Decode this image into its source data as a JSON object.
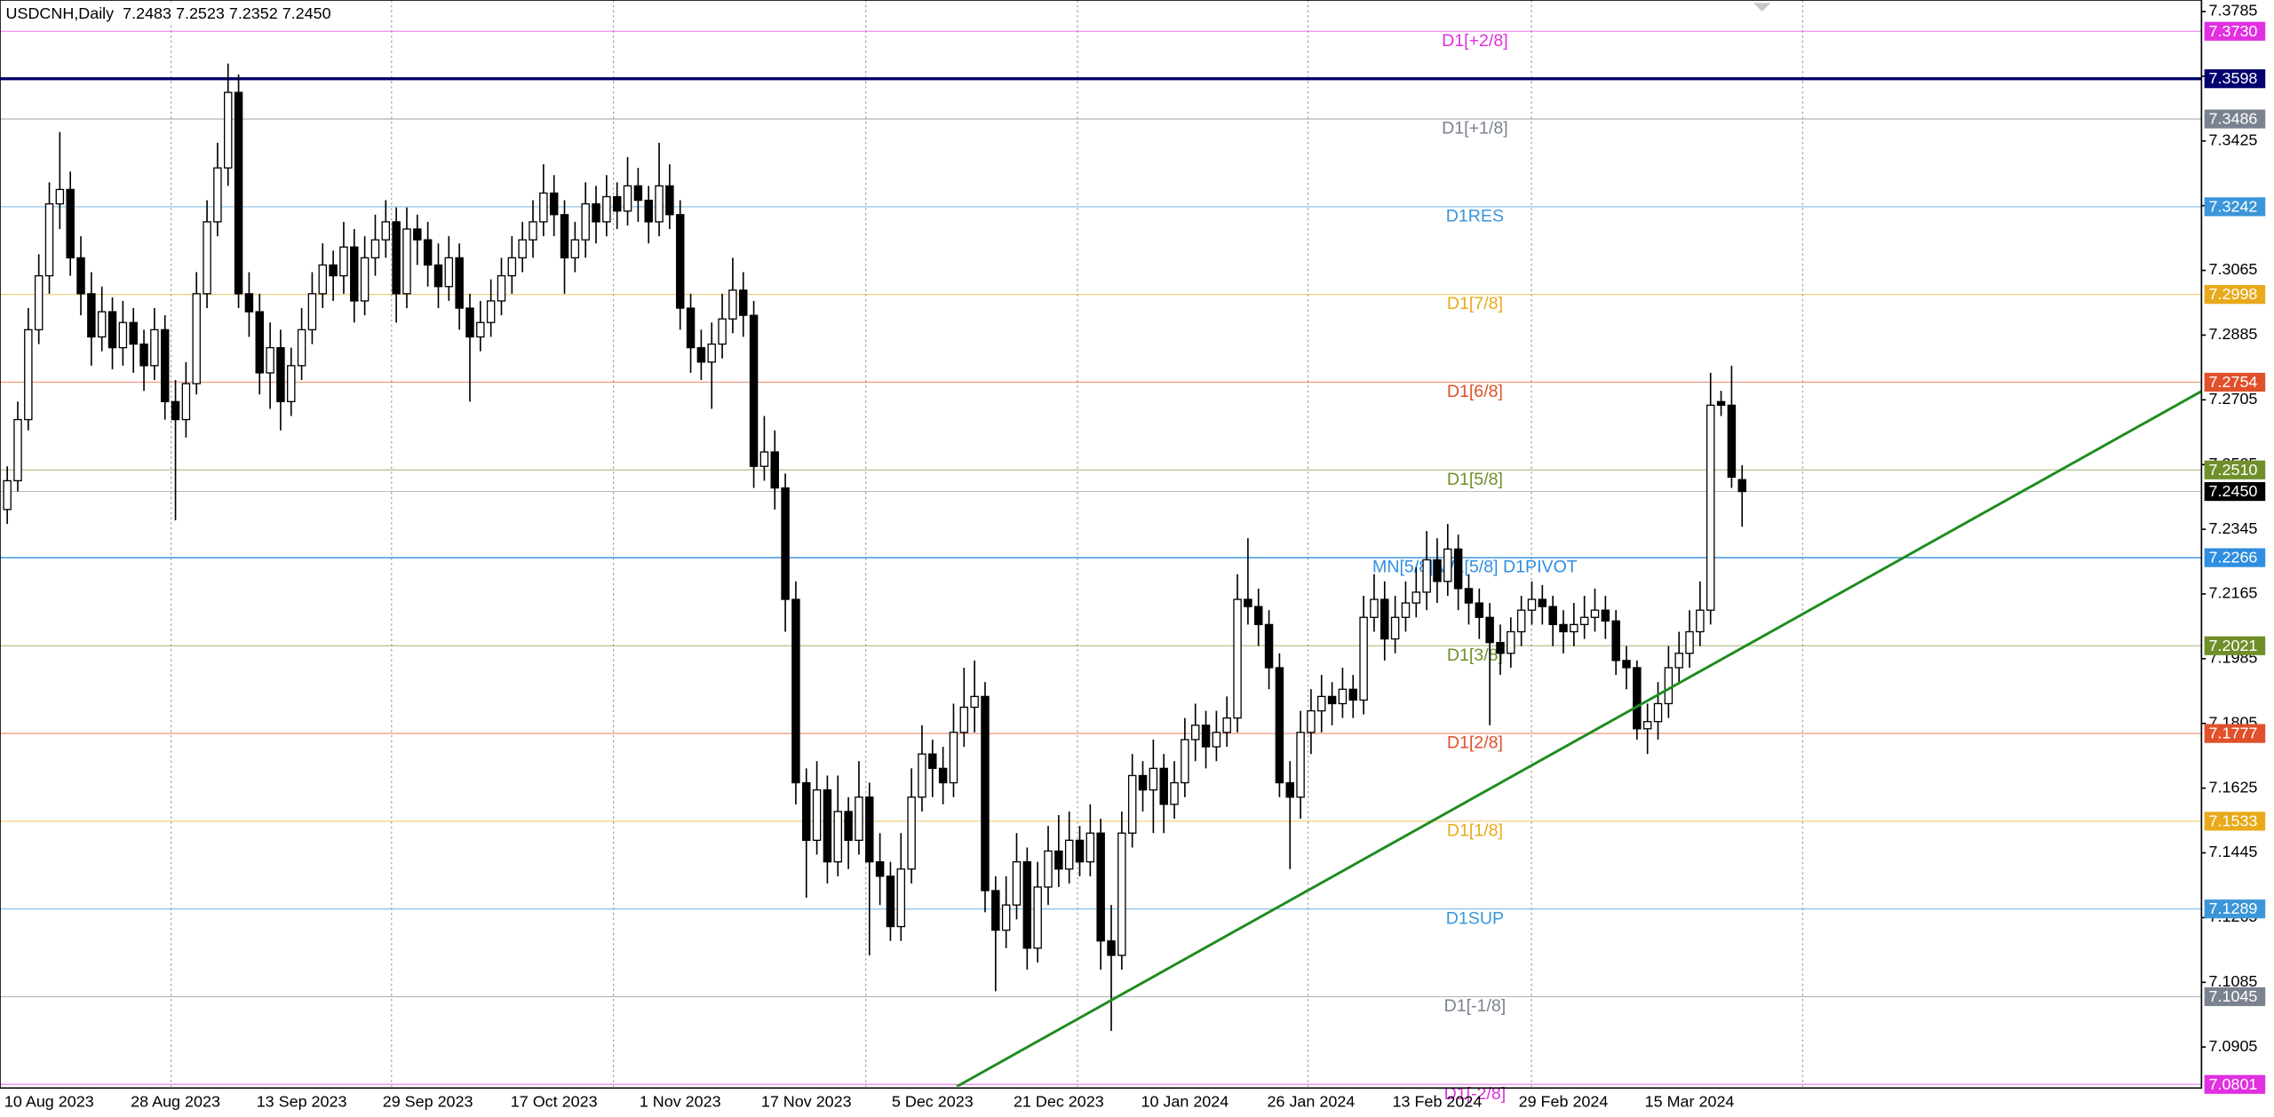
{
  "chart_data": {
    "type": "candlestick",
    "title": "USDCNH,Daily  7.2483 7.2523 7.2352 7.2450",
    "categories": [
      "10 Aug 2023",
      null,
      null,
      null,
      null,
      null,
      null,
      null,
      null,
      null,
      null,
      null,
      null,
      null,
      null,
      null,
      "28 Aug 2023",
      null,
      null,
      null,
      null,
      null,
      null,
      null,
      null,
      null,
      null,
      null,
      "13 Sep 2023",
      null,
      null,
      null,
      null,
      null,
      null,
      null,
      null,
      null,
      null,
      null,
      "29 Sep 2023",
      null,
      null,
      null,
      null,
      null,
      null,
      null,
      null,
      null,
      null,
      null,
      "17 Oct 2023",
      null,
      null,
      null,
      null,
      null,
      null,
      null,
      null,
      null,
      null,
      null,
      "1 Nov 2023",
      null,
      null,
      null,
      null,
      null,
      null,
      null,
      null,
      null,
      null,
      null,
      "17 Nov 2023",
      null,
      null,
      null,
      null,
      null,
      null,
      null,
      null,
      null,
      null,
      null,
      "5 Dec 2023",
      null,
      null,
      null,
      null,
      null,
      null,
      null,
      null,
      null,
      null,
      null,
      "21 Dec 2023",
      null,
      null,
      null,
      null,
      null,
      null,
      null,
      null,
      null,
      null,
      null,
      "10 Jan 2024",
      null,
      null,
      null,
      null,
      null,
      null,
      null,
      null,
      null,
      null,
      null,
      "26 Jan 2024",
      null,
      null,
      null,
      null,
      null,
      null,
      null,
      null,
      null,
      null,
      null,
      "13 Feb 2024",
      null,
      null,
      null,
      null,
      null,
      null,
      null,
      null,
      null,
      null,
      null,
      "29 Feb 2024",
      null,
      null,
      null,
      null,
      null,
      null,
      null,
      null,
      null,
      null,
      null,
      "15 Mar 2024",
      null,
      null,
      null,
      null,
      null
    ],
    "ohlc": [
      [
        7.24,
        7.252,
        7.236,
        7.248
      ],
      [
        7.248,
        7.27,
        7.245,
        7.265
      ],
      [
        7.265,
        7.296,
        7.262,
        7.29
      ],
      [
        7.29,
        7.311,
        7.286,
        7.305
      ],
      [
        7.305,
        7.331,
        7.3,
        7.325
      ],
      [
        7.325,
        7.345,
        7.318,
        7.329
      ],
      [
        7.329,
        7.334,
        7.305,
        7.31
      ],
      [
        7.31,
        7.316,
        7.294,
        7.3
      ],
      [
        7.3,
        7.306,
        7.28,
        7.288
      ],
      [
        7.288,
        7.302,
        7.284,
        7.295
      ],
      [
        7.295,
        7.299,
        7.279,
        7.285
      ],
      [
        7.285,
        7.298,
        7.28,
        7.292
      ],
      [
        7.292,
        7.296,
        7.278,
        7.286
      ],
      [
        7.286,
        7.29,
        7.273,
        7.28
      ],
      [
        7.28,
        7.296,
        7.276,
        7.29
      ],
      [
        7.29,
        7.294,
        7.265,
        7.27
      ],
      [
        7.27,
        7.276,
        7.237,
        7.265
      ],
      [
        7.265,
        7.281,
        7.26,
        7.275
      ],
      [
        7.275,
        7.306,
        7.272,
        7.3
      ],
      [
        7.3,
        7.326,
        7.296,
        7.32
      ],
      [
        7.32,
        7.342,
        7.316,
        7.335
      ],
      [
        7.335,
        7.364,
        7.33,
        7.356
      ],
      [
        7.356,
        7.361,
        7.296,
        7.3
      ],
      [
        7.3,
        7.306,
        7.288,
        7.295
      ],
      [
        7.295,
        7.3,
        7.272,
        7.278
      ],
      [
        7.278,
        7.292,
        7.268,
        7.285
      ],
      [
        7.285,
        7.29,
        7.262,
        7.27
      ],
      [
        7.27,
        7.285,
        7.266,
        7.28
      ],
      [
        7.28,
        7.296,
        7.276,
        7.29
      ],
      [
        7.29,
        7.306,
        7.286,
        7.3
      ],
      [
        7.3,
        7.314,
        7.296,
        7.308
      ],
      [
        7.308,
        7.312,
        7.298,
        7.305
      ],
      [
        7.305,
        7.32,
        7.3,
        7.313
      ],
      [
        7.313,
        7.318,
        7.292,
        7.298
      ],
      [
        7.298,
        7.316,
        7.294,
        7.31
      ],
      [
        7.31,
        7.322,
        7.305,
        7.315
      ],
      [
        7.315,
        7.326,
        7.31,
        7.32
      ],
      [
        7.32,
        7.324,
        7.292,
        7.3
      ],
      [
        7.3,
        7.324,
        7.296,
        7.318
      ],
      [
        7.318,
        7.322,
        7.308,
        7.315
      ],
      [
        7.315,
        7.32,
        7.302,
        7.308
      ],
      [
        7.308,
        7.314,
        7.296,
        7.302
      ],
      [
        7.302,
        7.316,
        7.298,
        7.31
      ],
      [
        7.31,
        7.314,
        7.29,
        7.296
      ],
      [
        7.296,
        7.3,
        7.27,
        7.288
      ],
      [
        7.288,
        7.298,
        7.284,
        7.292
      ],
      [
        7.292,
        7.304,
        7.288,
        7.298
      ],
      [
        7.298,
        7.31,
        7.294,
        7.305
      ],
      [
        7.305,
        7.316,
        7.3,
        7.31
      ],
      [
        7.31,
        7.32,
        7.306,
        7.315
      ],
      [
        7.315,
        7.326,
        7.31,
        7.32
      ],
      [
        7.32,
        7.336,
        7.316,
        7.328
      ],
      [
        7.328,
        7.333,
        7.316,
        7.322
      ],
      [
        7.322,
        7.326,
        7.3,
        7.31
      ],
      [
        7.31,
        7.32,
        7.306,
        7.315
      ],
      [
        7.315,
        7.331,
        7.31,
        7.325
      ],
      [
        7.325,
        7.33,
        7.314,
        7.32
      ],
      [
        7.32,
        7.333,
        7.316,
        7.327
      ],
      [
        7.327,
        7.331,
        7.318,
        7.323
      ],
      [
        7.323,
        7.338,
        7.319,
        7.33
      ],
      [
        7.33,
        7.335,
        7.32,
        7.326
      ],
      [
        7.326,
        7.33,
        7.314,
        7.32
      ],
      [
        7.32,
        7.342,
        7.316,
        7.33
      ],
      [
        7.33,
        7.336,
        7.318,
        7.322
      ],
      [
        7.322,
        7.326,
        7.29,
        7.296
      ],
      [
        7.296,
        7.3,
        7.278,
        7.285
      ],
      [
        7.285,
        7.29,
        7.276,
        7.281
      ],
      [
        7.281,
        7.292,
        7.268,
        7.286
      ],
      [
        7.286,
        7.3,
        7.282,
        7.293
      ],
      [
        7.293,
        7.31,
        7.289,
        7.301
      ],
      [
        7.301,
        7.306,
        7.288,
        7.294
      ],
      [
        7.294,
        7.298,
        7.246,
        7.252
      ],
      [
        7.252,
        7.266,
        7.248,
        7.256
      ],
      [
        7.256,
        7.262,
        7.24,
        7.246
      ],
      [
        7.246,
        7.25,
        7.206,
        7.215
      ],
      [
        7.215,
        7.22,
        7.158,
        7.164
      ],
      [
        7.164,
        7.168,
        7.132,
        7.148
      ],
      [
        7.148,
        7.17,
        7.144,
        7.162
      ],
      [
        7.162,
        7.166,
        7.136,
        7.142
      ],
      [
        7.142,
        7.166,
        7.138,
        7.156
      ],
      [
        7.156,
        7.16,
        7.14,
        7.148
      ],
      [
        7.148,
        7.17,
        7.144,
        7.16
      ],
      [
        7.16,
        7.164,
        7.116,
        7.142
      ],
      [
        7.142,
        7.15,
        7.13,
        7.138
      ],
      [
        7.138,
        7.142,
        7.12,
        7.124
      ],
      [
        7.124,
        7.15,
        7.12,
        7.14
      ],
      [
        7.14,
        7.168,
        7.136,
        7.16
      ],
      [
        7.16,
        7.18,
        7.156,
        7.172
      ],
      [
        7.172,
        7.176,
        7.16,
        7.168
      ],
      [
        7.168,
        7.174,
        7.158,
        7.164
      ],
      [
        7.164,
        7.186,
        7.16,
        7.178
      ],
      [
        7.178,
        7.196,
        7.174,
        7.185
      ],
      [
        7.185,
        7.198,
        7.178,
        7.188
      ],
      [
        7.188,
        7.192,
        7.128,
        7.134
      ],
      [
        7.134,
        7.138,
        7.106,
        7.123
      ],
      [
        7.123,
        7.138,
        7.118,
        7.13
      ],
      [
        7.13,
        7.15,
        7.126,
        7.142
      ],
      [
        7.142,
        7.146,
        7.112,
        7.118
      ],
      [
        7.118,
        7.142,
        7.114,
        7.135
      ],
      [
        7.135,
        7.152,
        7.13,
        7.145
      ],
      [
        7.145,
        7.155,
        7.135,
        7.14
      ],
      [
        7.14,
        7.156,
        7.136,
        7.148
      ],
      [
        7.148,
        7.152,
        7.138,
        7.142
      ],
      [
        7.142,
        7.158,
        7.138,
        7.15
      ],
      [
        7.15,
        7.154,
        7.112,
        7.12
      ],
      [
        7.12,
        7.13,
        7.095,
        7.116
      ],
      [
        7.116,
        7.156,
        7.112,
        7.15
      ],
      [
        7.15,
        7.172,
        7.146,
        7.166
      ],
      [
        7.166,
        7.17,
        7.156,
        7.162
      ],
      [
        7.162,
        7.176,
        7.15,
        7.168
      ],
      [
        7.168,
        7.172,
        7.15,
        7.158
      ],
      [
        7.158,
        7.17,
        7.154,
        7.164
      ],
      [
        7.164,
        7.182,
        7.16,
        7.176
      ],
      [
        7.176,
        7.186,
        7.17,
        7.18
      ],
      [
        7.18,
        7.184,
        7.168,
        7.174
      ],
      [
        7.174,
        7.184,
        7.17,
        7.178
      ],
      [
        7.178,
        7.188,
        7.174,
        7.182
      ],
      [
        7.182,
        7.222,
        7.178,
        7.215
      ],
      [
        7.215,
        7.232,
        7.208,
        7.213
      ],
      [
        7.213,
        7.218,
        7.202,
        7.208
      ],
      [
        7.208,
        7.212,
        7.19,
        7.196
      ],
      [
        7.196,
        7.2,
        7.16,
        7.164
      ],
      [
        7.164,
        7.17,
        7.14,
        7.16
      ],
      [
        7.16,
        7.184,
        7.154,
        7.178
      ],
      [
        7.178,
        7.19,
        7.172,
        7.184
      ],
      [
        7.184,
        7.194,
        7.178,
        7.188
      ],
      [
        7.188,
        7.192,
        7.18,
        7.186
      ],
      [
        7.186,
        7.196,
        7.182,
        7.19
      ],
      [
        7.19,
        7.194,
        7.182,
        7.187
      ],
      [
        7.187,
        7.216,
        7.183,
        7.21
      ],
      [
        7.21,
        7.222,
        7.206,
        7.215
      ],
      [
        7.215,
        7.22,
        7.198,
        7.204
      ],
      [
        7.204,
        7.216,
        7.2,
        7.21
      ],
      [
        7.21,
        7.22,
        7.206,
        7.214
      ],
      [
        7.214,
        7.224,
        7.21,
        7.217
      ],
      [
        7.217,
        7.234,
        7.212,
        7.226
      ],
      [
        7.226,
        7.232,
        7.214,
        7.22
      ],
      [
        7.22,
        7.236,
        7.216,
        7.229
      ],
      [
        7.229,
        7.233,
        7.212,
        7.218
      ],
      [
        7.218,
        7.222,
        7.208,
        7.214
      ],
      [
        7.214,
        7.218,
        7.204,
        7.21
      ],
      [
        7.21,
        7.214,
        7.18,
        7.203
      ],
      [
        7.203,
        7.208,
        7.194,
        7.2
      ],
      [
        7.2,
        7.21,
        7.196,
        7.206
      ],
      [
        7.206,
        7.216,
        7.202,
        7.212
      ],
      [
        7.212,
        7.22,
        7.208,
        7.215
      ],
      [
        7.215,
        7.219,
        7.208,
        7.213
      ],
      [
        7.213,
        7.216,
        7.202,
        7.208
      ],
      [
        7.208,
        7.212,
        7.2,
        7.206
      ],
      [
        7.206,
        7.214,
        7.202,
        7.208
      ],
      [
        7.208,
        7.216,
        7.204,
        7.21
      ],
      [
        7.21,
        7.218,
        7.206,
        7.212
      ],
      [
        7.212,
        7.216,
        7.204,
        7.209
      ],
      [
        7.209,
        7.212,
        7.194,
        7.198
      ],
      [
        7.198,
        7.202,
        7.19,
        7.196
      ],
      [
        7.196,
        7.198,
        7.176,
        7.179
      ],
      [
        7.179,
        7.186,
        7.172,
        7.181
      ],
      [
        7.181,
        7.192,
        7.176,
        7.186
      ],
      [
        7.186,
        7.202,
        7.182,
        7.196
      ],
      [
        7.196,
        7.206,
        7.192,
        7.2
      ],
      [
        7.2,
        7.212,
        7.196,
        7.206
      ],
      [
        7.206,
        7.22,
        7.202,
        7.212
      ],
      [
        7.212,
        7.278,
        7.208,
        7.269
      ],
      [
        7.27,
        7.273,
        7.266,
        7.269
      ],
      [
        7.269,
        7.28,
        7.246,
        7.249
      ],
      [
        7.2483,
        7.2523,
        7.2352,
        7.245
      ]
    ],
    "bull_color": "#ffffff",
    "bear_color": "#000000",
    "ylim": [
      7.0795,
      7.3817
    ],
    "yticks": [
      7.3785,
      7.3605,
      7.3425,
      7.3245,
      7.3065,
      7.2885,
      7.2705,
      7.2525,
      7.2345,
      7.2165,
      7.1985,
      7.1805,
      7.1625,
      7.1445,
      7.1265,
      7.1085,
      7.0905
    ],
    "levels": [
      {
        "name": "D1[+2/8]",
        "value": 7.373,
        "value_label": "7.3730",
        "color": "#e030e0"
      },
      {
        "value": 7.3598,
        "value_label": "7.3598",
        "color": "#00006e"
      },
      {
        "name": "D1[+1/8]",
        "value": 7.3486,
        "value_label": "7.3486",
        "color": "#7a8290"
      },
      {
        "name": "D1RES",
        "value": 7.3242,
        "value_label": "7.3242",
        "color": "#3a96d8"
      },
      {
        "name": "D1[7/8]",
        "value": 7.2998,
        "value_label": "7.2998",
        "color": "#e8aa1a"
      },
      {
        "name": "D1[6/8]",
        "value": 7.2754,
        "value_label": "7.2754",
        "color": "#e0502a"
      },
      {
        "name": "D1[5/8]",
        "value": 7.251,
        "value_label": "7.2510",
        "color": "#6f8f2a"
      },
      {
        "name": "MN[5/8] W1[5/8] D1PIVOT",
        "value": 7.2266,
        "value_label": "7.2266",
        "color": "#2f8ee0"
      },
      {
        "name": "D1[3/8]",
        "value": 7.2021,
        "value_label": "7.2021",
        "color": "#6f8f2a"
      },
      {
        "name": "D1[2/8]",
        "value": 7.1777,
        "value_label": "7.1777",
        "color": "#e0502a"
      },
      {
        "name": "D1[1/8]",
        "value": 7.1533,
        "value_label": "7.1533",
        "color": "#e8aa1a"
      },
      {
        "name": "D1SUP",
        "value": 7.1289,
        "value_label": "7.1289",
        "color": "#3a96d8"
      },
      {
        "name": "D1[-1/8]",
        "value": 7.1045,
        "value_label": "7.1045",
        "color": "#7a8290"
      },
      {
        "name": "D1[-2/8]",
        "value": 7.0801,
        "value_label": "7.0801",
        "color": "#e030e0"
      }
    ],
    "last_price": {
      "value": 7.245,
      "label": "7.2450",
      "color": "#000000"
    },
    "trendline": {
      "color": "#1e8c1e",
      "x": [
        90.3,
        208.7
      ],
      "y": [
        7.0795,
        7.2729
      ]
    }
  }
}
